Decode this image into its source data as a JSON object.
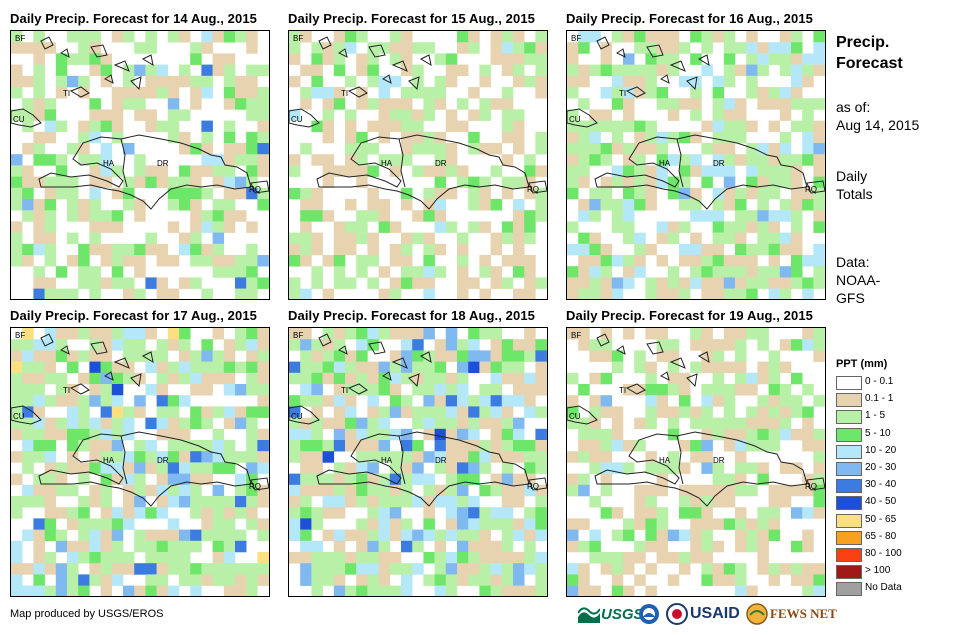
{
  "panels": [
    {
      "title": "Daily  Precip.  Forecast for 14 Aug., 2015"
    },
    {
      "title": "Daily  Precip.  Forecast for 15 Aug., 2015"
    },
    {
      "title": "Daily  Precip.  Forecast for 16 Aug., 2015"
    },
    {
      "title": "Daily  Precip.  Forecast for 17 Aug., 2015"
    },
    {
      "title": "Daily  Precip.  Forecast for 18 Aug., 2015"
    },
    {
      "title": "Daily  Precip.  Forecast for 19 Aug., 2015"
    }
  ],
  "map_labels": {
    "bf": "BF",
    "cu": "CU",
    "ti": "TI",
    "ha": "HA",
    "dr": "DR",
    "rq": "RQ"
  },
  "side": {
    "title_line1": "Precip.",
    "title_line2": "Forecast",
    "asof_line1": "as of:",
    "asof_line2": "Aug 14, 2015",
    "totals_line1": "Daily",
    "totals_line2": "Totals",
    "data_line1": "Data:",
    "data_line2": "NOAA-",
    "data_line3": "GFS"
  },
  "legend": {
    "title": "PPT (mm)",
    "items": [
      {
        "label": "0 - 0.1",
        "color": "#ffffff"
      },
      {
        "label": "0.1 - 1",
        "color": "#e8d3b0"
      },
      {
        "label": "1 - 5",
        "color": "#b8f0a8"
      },
      {
        "label": "5 - 10",
        "color": "#6ee66a"
      },
      {
        "label": "10 - 20",
        "color": "#b4e8f8"
      },
      {
        "label": "20 - 30",
        "color": "#80b8f0"
      },
      {
        "label": "30 - 40",
        "color": "#3c7ce0"
      },
      {
        "label": "40 - 50",
        "color": "#1c50d8"
      },
      {
        "label": "50 - 65",
        "color": "#fce080"
      },
      {
        "label": "65 - 80",
        "color": "#f8a020"
      },
      {
        "label": "80 - 100",
        "color": "#f84010"
      },
      {
        "label": "> 100",
        "color": "#a01818"
      },
      {
        "label": "No Data",
        "color": "#a0a0a0"
      }
    ]
  },
  "credit": "Map produced by USGS/EROS",
  "logos": {
    "usgs": "USGS",
    "usaid": "USAID",
    "fewsnet": "FEWS NET"
  }
}
